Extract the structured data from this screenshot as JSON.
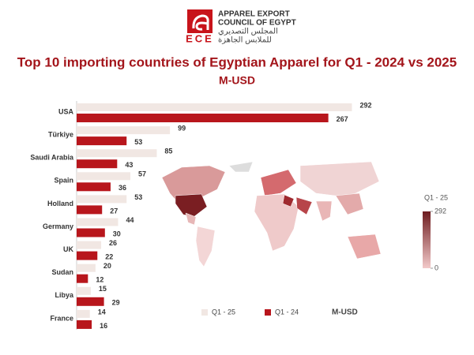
{
  "header": {
    "logo": "ECE",
    "name_lines": [
      "APPAREL EXPORT",
      "COUNCIL OF EGYPT"
    ],
    "arabic_lines": [
      "المجلس التصديري",
      "للملابس الجاهزة"
    ]
  },
  "chart_data": {
    "type": "bar",
    "orientation": "horizontal",
    "title": "Top 10 importing countries of Egyptian Apparel for Q1 - 2024 vs 2025",
    "subtitle": "M-USD",
    "categories": [
      "USA",
      "Türkiye",
      "Saudi Arabia",
      "Spain",
      "Holland",
      "Germany",
      "UK",
      "Sudan",
      "Libya",
      "France"
    ],
    "series": [
      {
        "name": "Q1 - 25",
        "color": "#f1e7e3",
        "values": [
          292,
          99,
          85,
          57,
          53,
          44,
          26,
          20,
          15,
          14
        ]
      },
      {
        "name": "Q1 - 24",
        "color": "#b8161c",
        "values": [
          267,
          53,
          43,
          36,
          27,
          30,
          22,
          12,
          29,
          16
        ]
      }
    ],
    "xlim": [
      0,
      300
    ],
    "legend_unit": "M-USD",
    "colorbar": {
      "title": "Q1 - 25",
      "ticks": [
        0,
        292
      ],
      "colors": [
        "#f2c9c9",
        "#6e1d20"
      ]
    }
  }
}
